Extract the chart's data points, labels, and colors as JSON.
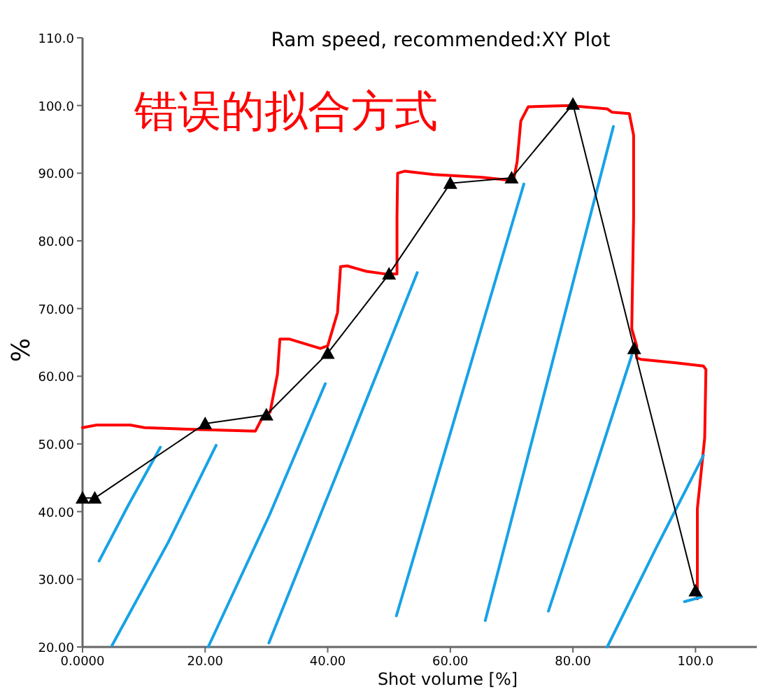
{
  "chart_data": {
    "type": "line",
    "title": "Ram speed, recommended:XY Plot",
    "xlabel": "Shot volume [%]",
    "ylabel": "%",
    "annotations": [
      "错误的拟合方式"
    ],
    "xlim": [
      0,
      110
    ],
    "ylim": [
      20,
      110
    ],
    "xticks": [
      {
        "value": 0,
        "label": "0.0000"
      },
      {
        "value": 20,
        "label": "20.00"
      },
      {
        "value": 40,
        "label": "40.00"
      },
      {
        "value": 60,
        "label": "60.00"
      },
      {
        "value": 80,
        "label": "80.00"
      },
      {
        "value": 100,
        "label": "100.0"
      }
    ],
    "yticks": [
      {
        "value": 20,
        "label": "20.00"
      },
      {
        "value": 30,
        "label": "30.00"
      },
      {
        "value": 40,
        "label": "40.00"
      },
      {
        "value": 50,
        "label": "50.00"
      },
      {
        "value": 60,
        "label": "60.00"
      },
      {
        "value": 70,
        "label": "70.00"
      },
      {
        "value": 80,
        "label": "80.00"
      },
      {
        "value": 90,
        "label": "90.00"
      },
      {
        "value": 100,
        "label": "100.0"
      },
      {
        "value": 110,
        "label": "110.0"
      }
    ],
    "grid": false,
    "series": [
      {
        "color": "#ff0000",
        "marker": "none",
        "x": [
          0,
          2.3,
          7.8,
          10.1,
          16.4,
          28.2,
          29.4,
          30.6,
          31.8,
          32.2,
          33.7,
          38.8,
          40,
          41.6,
          42.1,
          43.2,
          46.3,
          49.5,
          51.3,
          51.3,
          51.4,
          52.6,
          57.3,
          65.2,
          70.3,
          70.9,
          71.5,
          72.7,
          79.3,
          85.6,
          86.4,
          89.2,
          89.9,
          89.9,
          89.6,
          90.4,
          90.4,
          91.1,
          96.6,
          101.3,
          101.7,
          101.5,
          100.3,
          100.3
        ],
        "values": [
          52.4,
          52.8,
          52.8,
          52.4,
          52.2,
          51.9,
          54,
          54.7,
          60.3,
          65.5,
          65.5,
          64.1,
          64.5,
          69.4,
          76.2,
          76.3,
          75.5,
          75.1,
          75.1,
          83.4,
          90,
          90.3,
          89.8,
          89.4,
          88.9,
          91.7,
          97.7,
          99.8,
          100,
          99.5,
          99,
          98.8,
          95.6,
          83.4,
          67,
          64.5,
          62.7,
          62.5,
          62,
          61.5,
          61,
          50.9,
          40.4,
          27.1
        ]
      },
      {
        "color": "#17a2e6",
        "marker": "none",
        "x": [
          2.7,
          7.5,
          12.7
        ],
        "values": [
          32.7,
          41,
          49.5
        ]
      },
      {
        "color": "#17a2e6",
        "marker": "none",
        "x": [
          4.8,
          14,
          21.8
        ],
        "values": [
          20.2,
          35.5,
          49.8
        ]
      },
      {
        "color": "#17a2e6",
        "marker": "none",
        "x": [
          20.5,
          30.5,
          39.6
        ],
        "values": [
          20,
          39.5,
          58.9
        ]
      },
      {
        "color": "#17a2e6",
        "marker": "none",
        "x": [
          30.4,
          43,
          54.6
        ],
        "values": [
          20.6,
          49,
          75.3
        ]
      },
      {
        "color": "#17a2e6",
        "marker": "none",
        "x": [
          51.2,
          61.6,
          72
        ],
        "values": [
          24.6,
          56.5,
          88.4
        ]
      },
      {
        "color": "#17a2e6",
        "marker": "none",
        "x": [
          65.7,
          76.2,
          86.6
        ],
        "values": [
          23.9,
          60.5,
          96.9
        ]
      },
      {
        "color": "#17a2e6",
        "marker": "none",
        "x": [
          76,
          82.8,
          89.6
        ],
        "values": [
          25.3,
          44,
          63.1
        ]
      },
      {
        "color": "#17a2e6",
        "marker": "none",
        "x": [
          85.6,
          93.5,
          101.3
        ],
        "values": [
          20,
          34.5,
          48.3
        ]
      },
      {
        "color": "#17a2e6",
        "marker": "none",
        "x": [
          98.2,
          101
        ],
        "values": [
          26.7,
          27.4
        ]
      },
      {
        "color": "#000000",
        "marker": "triangle",
        "x": [
          0,
          2,
          20,
          30,
          40,
          50,
          60,
          70,
          80,
          90,
          100
        ],
        "values": [
          42,
          42,
          53,
          54.3,
          63.4,
          75.1,
          88.5,
          89.3,
          100.2,
          64.1,
          28.3
        ]
      }
    ]
  }
}
